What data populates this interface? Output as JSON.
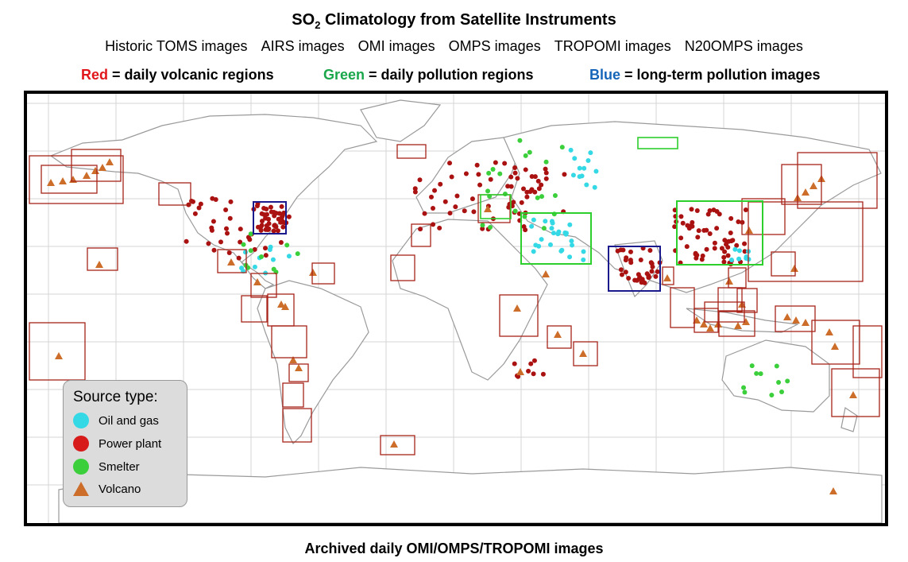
{
  "header": {
    "title_prefix": "SO",
    "title_subscript": "2",
    "title_suffix": " Climatology from Satellite Instruments"
  },
  "links": [
    "Historic TOMS images",
    "AIRS images",
    "OMI images",
    "OMPS images",
    "TROPOMI images",
    "N20OMPS images"
  ],
  "color_key": {
    "red_word": "Red",
    "red_text": " = daily volcanic regions",
    "green_word": "Green",
    "green_text": " = daily pollution regions",
    "blue_word": "Blue",
    "blue_text": " = long-term pollution images"
  },
  "colors": {
    "red_box": "#a8231a",
    "green_box": "#2dcf2d",
    "blue_box": "#1a1a8c",
    "oil_gas": "#35d9e6",
    "power_plant": "#aa1111",
    "smelter": "#3ccf3c",
    "volcano": "#cc6d2a"
  },
  "source_legend": {
    "title": "Source type:",
    "items": [
      {
        "label": "Oil and  gas",
        "symbol": "circle",
        "color": "#35d9e6"
      },
      {
        "label": "Power plant",
        "symbol": "circle",
        "color": "#d71a1a"
      },
      {
        "label": "Smelter",
        "symbol": "circle",
        "color": "#3ccf3c"
      },
      {
        "label": "Volcano",
        "symbol": "triangle",
        "color": "#cc6d2a"
      }
    ]
  },
  "footer": {
    "label": "Archived daily OMI/OMPS/TROPOMI images"
  }
}
